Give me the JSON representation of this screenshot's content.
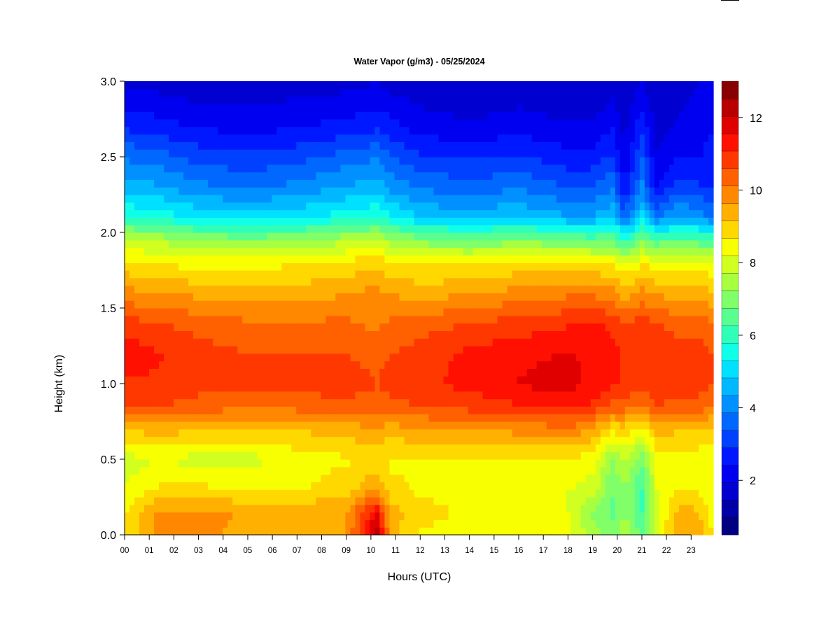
{
  "chart_data": {
    "type": "heatmap",
    "title": "Water Vapor (g/m3) - 05/25/2024",
    "xlabel": "Hours (UTC)",
    "ylabel": "Height (km)",
    "x_ticks": [
      "00",
      "01",
      "02",
      "03",
      "04",
      "05",
      "06",
      "07",
      "08",
      "09",
      "10",
      "11",
      "12",
      "13",
      "14",
      "15",
      "16",
      "17",
      "18",
      "19",
      "20",
      "21",
      "22",
      "23"
    ],
    "y_ticks": [
      "0.0",
      "0.5",
      "1.0",
      "1.5",
      "2.0",
      "2.5",
      "3.0"
    ],
    "xlim": [
      0,
      23.9
    ],
    "ylim": [
      0,
      3.0
    ],
    "colorbar": {
      "range": [
        0.5,
        13
      ],
      "tick_labels": [
        "2",
        "4",
        "6",
        "8",
        "10",
        "12"
      ],
      "colors": [
        "#000080",
        "#0000a8",
        "#0000d0",
        "#0000f0",
        "#0018ff",
        "#0040ff",
        "#0068ff",
        "#0090ff",
        "#00b8ff",
        "#00e0ff",
        "#10ffe8",
        "#30ffb8",
        "#58ff90",
        "#80ff68",
        "#a8ff40",
        "#d0ff20",
        "#f8ff00",
        "#ffd800",
        "#ffb000",
        "#ff8800",
        "#ff6000",
        "#ff3800",
        "#ff1000",
        "#e00000",
        "#b80000",
        "#880000"
      ]
    },
    "heights_km": [
      0.0,
      0.15,
      0.3,
      0.5,
      0.7,
      0.85,
      1.0,
      1.2,
      1.4,
      1.6,
      1.8,
      1.95,
      2.1,
      2.3,
      2.5,
      2.7,
      2.9,
      3.0
    ],
    "times_utc_h": [
      0.0,
      1.5,
      3.0,
      5.0,
      7.0,
      9.0,
      10.25,
      10.8,
      12.0,
      14.0,
      16.0,
      18.0,
      19.0,
      19.8,
      20.3,
      21.0,
      21.6,
      22.5,
      23.3,
      23.9
    ],
    "water_vapor_profiles": [
      [
        8.6,
        8.6,
        8.2,
        8.0,
        9.2,
        10.6,
        11.0,
        11.4,
        10.8,
        9.8,
        8.8,
        7.8,
        5.8,
        4.6,
        3.8,
        2.8,
        2.2,
        1.8
      ],
      [
        9.8,
        9.8,
        8.8,
        8.2,
        9.4,
        10.6,
        11.0,
        11.1,
        10.6,
        9.6,
        8.6,
        7.6,
        5.6,
        4.4,
        3.6,
        2.6,
        2.0,
        1.7
      ],
      [
        9.8,
        9.8,
        8.8,
        8.0,
        9.2,
        10.4,
        10.8,
        10.8,
        10.4,
        9.5,
        8.5,
        7.2,
        5.2,
        4.0,
        3.2,
        2.4,
        1.8,
        1.6
      ],
      [
        9.4,
        9.6,
        8.6,
        8.0,
        9.1,
        10.2,
        10.8,
        10.6,
        10.2,
        9.4,
        8.5,
        7.0,
        5.0,
        3.8,
        3.0,
        2.2,
        1.8,
        1.6
      ],
      [
        9.3,
        9.5,
        8.6,
        8.4,
        9.2,
        10.3,
        10.8,
        10.6,
        10.2,
        9.4,
        8.6,
        7.2,
        5.2,
        4.0,
        3.2,
        2.4,
        1.9,
        1.7
      ],
      [
        9.6,
        9.6,
        9.0,
        8.6,
        9.4,
        10.4,
        10.9,
        10.6,
        10.2,
        9.6,
        8.8,
        7.6,
        5.6,
        4.4,
        3.6,
        2.6,
        2.0,
        1.8
      ],
      [
        12.4,
        11.6,
        9.6,
        8.8,
        9.6,
        10.4,
        10.6,
        10.4,
        10.0,
        9.8,
        9.0,
        7.8,
        5.8,
        4.6,
        3.8,
        2.8,
        2.2,
        1.9
      ],
      [
        9.4,
        9.4,
        8.8,
        8.6,
        9.4,
        10.4,
        10.8,
        10.6,
        10.2,
        9.6,
        8.8,
        7.4,
        5.4,
        4.2,
        3.4,
        2.6,
        2.0,
        1.8
      ],
      [
        8.6,
        8.8,
        8.6,
        8.6,
        9.6,
        10.6,
        11.0,
        10.8,
        10.4,
        9.4,
        8.6,
        7.0,
        4.8,
        3.8,
        3.0,
        2.2,
        1.8,
        1.6
      ],
      [
        8.6,
        8.6,
        8.6,
        8.6,
        9.6,
        10.8,
        11.2,
        11.2,
        10.6,
        9.6,
        8.6,
        6.8,
        4.6,
        3.6,
        2.8,
        2.0,
        1.7,
        1.5
      ],
      [
        8.6,
        8.6,
        8.4,
        8.6,
        9.8,
        11.0,
        11.6,
        11.4,
        10.8,
        9.8,
        8.8,
        7.0,
        4.8,
        3.8,
        3.0,
        2.2,
        1.8,
        1.6
      ],
      [
        8.4,
        8.2,
        8.2,
        8.6,
        10.0,
        11.2,
        11.8,
        11.6,
        11.0,
        10.0,
        8.8,
        6.8,
        4.4,
        3.4,
        2.6,
        2.0,
        1.6,
        1.5
      ],
      [
        7.4,
        7.2,
        8.0,
        8.4,
        9.6,
        11.0,
        11.4,
        11.4,
        11.2,
        10.0,
        8.8,
        6.6,
        4.4,
        3.4,
        2.6,
        2.0,
        1.6,
        1.5
      ],
      [
        7.0,
        6.6,
        6.8,
        7.2,
        8.8,
        10.4,
        11.2,
        11.2,
        11.0,
        9.8,
        8.6,
        6.8,
        4.8,
        3.8,
        3.0,
        2.4,
        1.9,
        1.7
      ],
      [
        7.6,
        7.2,
        7.2,
        7.8,
        9.0,
        10.4,
        11.0,
        11.0,
        10.6,
        9.4,
        8.2,
        5.8,
        3.6,
        2.4,
        2.0,
        1.8,
        1.6,
        1.5
      ],
      [
        6.6,
        6.2,
        6.2,
        6.8,
        8.4,
        10.0,
        10.8,
        11.0,
        10.8,
        9.8,
        8.6,
        7.0,
        5.0,
        4.0,
        3.4,
        2.8,
        2.2,
        1.9
      ],
      [
        8.2,
        8.0,
        8.2,
        8.4,
        9.4,
        10.6,
        11.0,
        11.0,
        10.6,
        9.6,
        8.4,
        6.4,
        3.8,
        2.4,
        2.0,
        1.8,
        1.6,
        1.5
      ],
      [
        9.6,
        9.4,
        8.6,
        8.4,
        9.2,
        10.4,
        10.8,
        10.8,
        10.4,
        9.4,
        8.4,
        6.6,
        4.4,
        3.2,
        2.4,
        2.0,
        1.8,
        1.7
      ],
      [
        9.4,
        9.2,
        8.6,
        8.4,
        9.2,
        10.4,
        10.8,
        10.8,
        10.4,
        9.4,
        8.4,
        6.4,
        4.2,
        3.0,
        2.4,
        2.2,
        2.0,
        1.9
      ],
      [
        8.6,
        8.4,
        8.2,
        8.2,
        9.0,
        10.2,
        10.6,
        10.6,
        10.2,
        9.2,
        8.2,
        6.2,
        3.8,
        2.8,
        2.6,
        2.4,
        2.3,
        2.2
      ]
    ]
  }
}
